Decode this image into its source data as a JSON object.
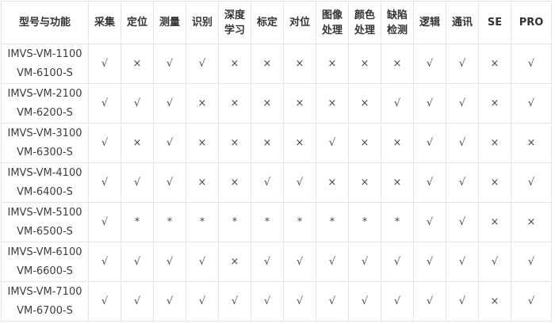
{
  "table": {
    "headers": [
      {
        "label": "型号与功能"
      },
      {
        "label": "采集"
      },
      {
        "label": "定位"
      },
      {
        "label": "测量"
      },
      {
        "label": "识别"
      },
      {
        "label": "深度\n学习"
      },
      {
        "label": "标定"
      },
      {
        "label": "对位"
      },
      {
        "label": "图像\n处理"
      },
      {
        "label": "颜色\n处理"
      },
      {
        "label": "缺陷\n检测"
      },
      {
        "label": "逻辑"
      },
      {
        "label": "通讯"
      },
      {
        "label": "SE"
      },
      {
        "label": "PRO"
      }
    ],
    "legend_symbols": {
      "supported": "√",
      "unsupported": "×",
      "partial": "*"
    },
    "rows": [
      {
        "model": "IMVS-VM-1100\nVM-6100-S",
        "values": [
          "√",
          "×",
          "√",
          "√",
          "×",
          "×",
          "×",
          "×",
          "×",
          "×",
          "√",
          "√",
          "×",
          "√"
        ]
      },
      {
        "model": "IMVS-VM-2100\nVM-6200-S",
        "values": [
          "√",
          "√",
          "√",
          "×",
          "×",
          "×",
          "×",
          "×",
          "×",
          "√",
          "√",
          "√",
          "×",
          "√"
        ]
      },
      {
        "model": "IMVS-VM-3100\nVM-6300-S",
        "values": [
          "√",
          "×",
          "√",
          "×",
          "×",
          "×",
          "×",
          "√",
          "×",
          "×",
          "√",
          "√",
          "×",
          "×"
        ]
      },
      {
        "model": "IMVS-VM-4100\nVM-6400-S",
        "values": [
          "√",
          "√",
          "√",
          "×",
          "×",
          "√",
          "√",
          "×",
          "×",
          "×",
          "√",
          "√",
          "×",
          "√"
        ]
      },
      {
        "model": "IMVS-VM-5100\nVM-6500-S",
        "values": [
          "√",
          "*",
          "*",
          "*",
          "*",
          "*",
          "*",
          "*",
          "*",
          "*",
          "√",
          "√",
          "×",
          "×"
        ]
      },
      {
        "model": "IMVS-VM-6100\nVM-6600-S",
        "values": [
          "√",
          "√",
          "√",
          "√",
          "×",
          "√",
          "√",
          "√",
          "√",
          "√",
          "√",
          "√",
          "√",
          "√"
        ]
      },
      {
        "model": "IMVS-VM-7100\nVM-6700-S",
        "values": [
          "√",
          "√",
          "√",
          "√",
          "√",
          "√",
          "√",
          "√",
          "√",
          "√",
          "√",
          "√",
          "×",
          "√"
        ]
      }
    ],
    "colors": {
      "border": "#e4e4e4",
      "header_text": "#333333",
      "body_text": "#4a4a4a",
      "background": "#ffffff"
    }
  }
}
